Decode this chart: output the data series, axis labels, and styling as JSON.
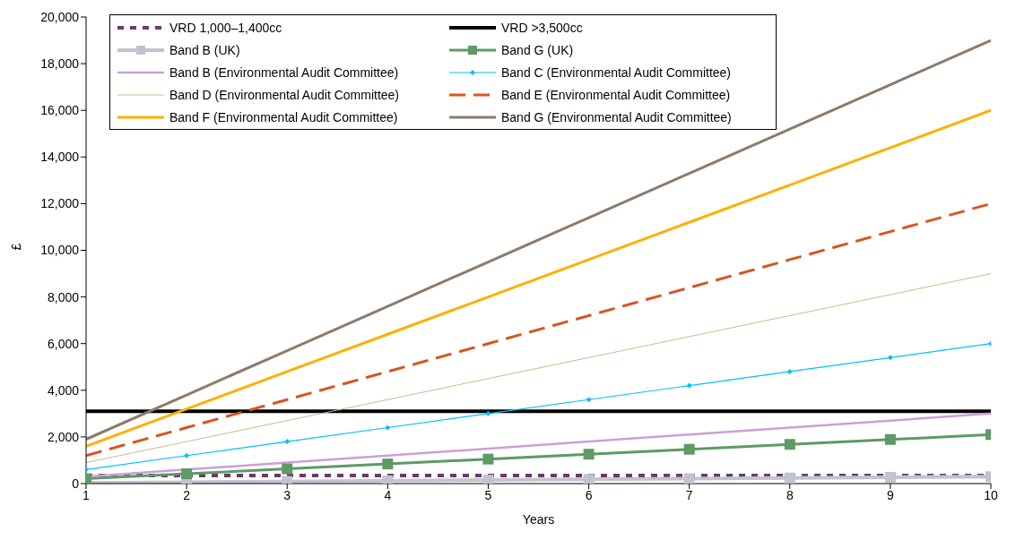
{
  "chart_data": {
    "type": "line",
    "xlabel": "Years",
    "ylabel": "£",
    "x": [
      1,
      2,
      3,
      4,
      5,
      6,
      7,
      8,
      9,
      10
    ],
    "xlim": [
      1,
      10
    ],
    "xticks": [
      1,
      2,
      3,
      4,
      5,
      6,
      7,
      8,
      9,
      10
    ],
    "ylim": [
      0,
      20000
    ],
    "yticks": [
      0,
      {
        "value": 2000,
        "label": "2,000"
      },
      {
        "value": 4000,
        "label": "4,000"
      },
      {
        "value": 6000,
        "label": "6,000"
      },
      {
        "value": 8000,
        "label": "8,000"
      },
      {
        "value": 10000,
        "label": "10,000"
      },
      {
        "value": 12000,
        "label": "12,000"
      },
      {
        "value": 14000,
        "label": "14,000"
      },
      {
        "value": 16000,
        "label": "16,000"
      },
      {
        "value": 18000,
        "label": "18,000"
      },
      {
        "value": 20000,
        "label": "20,000"
      }
    ],
    "grid": false,
    "legend": "top",
    "marker": "none",
    "line_style": "solid",
    "series": [
      {
        "name": "VRD 1,000–1,400cc",
        "color": "#6b3a6b",
        "line_style": "dotted",
        "values": [
          350,
          350,
          350,
          350,
          350,
          350,
          350,
          350,
          350,
          350
        ]
      },
      {
        "name": "VRD >3,500cc",
        "color": "#000000",
        "values": [
          3100,
          3100,
          3100,
          3100,
          3100,
          3100,
          3100,
          3100,
          3100,
          3100
        ]
      },
      {
        "name": "Band B (UK)",
        "color": "#c0c4d0",
        "marker": "square",
        "values": [
          30,
          60,
          90,
          120,
          150,
          180,
          210,
          240,
          270,
          300
        ]
      },
      {
        "name": "Band G (UK)",
        "color": "#5e9a64",
        "marker": "square",
        "values": [
          210,
          420,
          630,
          840,
          1050,
          1260,
          1470,
          1680,
          1890,
          2100
        ]
      },
      {
        "name": "Band B (Environmental Audit Committee)",
        "color": "#c9a0d8",
        "values": [
          300,
          600,
          900,
          1200,
          1500,
          1800,
          2100,
          2400,
          2700,
          3000
        ]
      },
      {
        "name": "Band C (Environmental Audit Committee)",
        "color": "#00bfff",
        "marker": "diamond",
        "values": [
          600,
          1200,
          1800,
          2400,
          3000,
          3600,
          4200,
          4800,
          5400,
          6000
        ]
      },
      {
        "name": "Band D (Environmental Audit Committee)",
        "color": "#c8bc8c",
        "values": [
          900,
          1800,
          2700,
          3600,
          4500,
          5400,
          6300,
          7200,
          8100,
          9000
        ]
      },
      {
        "name": "Band E (Environmental Audit Committee)",
        "color": "#d9541e",
        "line_style": "dashed",
        "values": [
          1200,
          2400,
          3600,
          4800,
          6000,
          7200,
          8400,
          9600,
          10800,
          12000
        ]
      },
      {
        "name": "Band F (Environmental Audit Committee)",
        "color": "#ffb000",
        "values": [
          1600,
          3200,
          4800,
          6400,
          8000,
          9600,
          11200,
          12800,
          14400,
          16000
        ]
      },
      {
        "name": "Band G (Environmental Audit Committee)",
        "color": "#8c7b6b",
        "values": [
          1900,
          3800,
          5700,
          7600,
          9500,
          11400,
          13300,
          15200,
          17100,
          19000
        ]
      }
    ]
  }
}
